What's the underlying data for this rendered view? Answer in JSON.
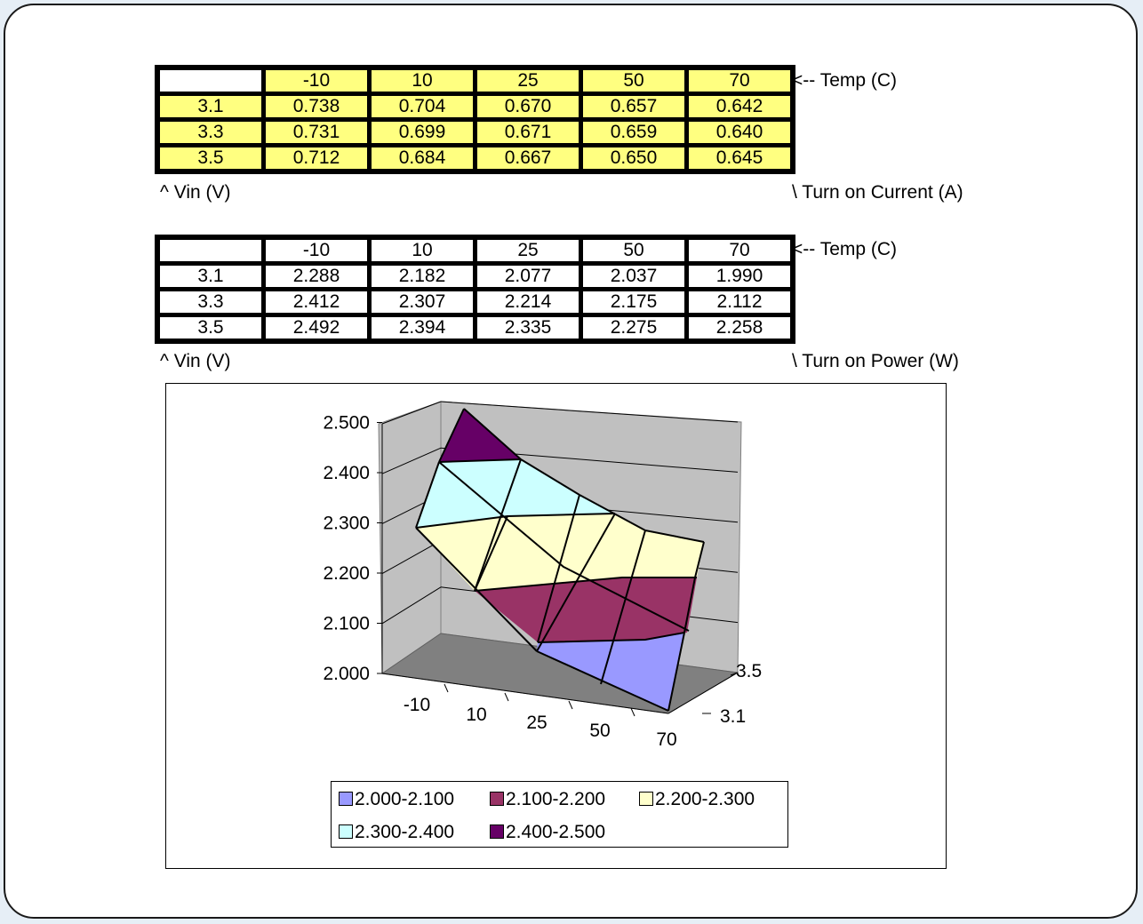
{
  "current_table": {
    "temps": [
      "-10",
      "10",
      "25",
      "50",
      "70"
    ],
    "rows": [
      {
        "vin": "3.1",
        "values": [
          "0.738",
          "0.704",
          "0.670",
          "0.657",
          "0.642"
        ]
      },
      {
        "vin": "3.3",
        "values": [
          "0.731",
          "0.699",
          "0.671",
          "0.659",
          "0.640"
        ]
      },
      {
        "vin": "3.5",
        "values": [
          "0.712",
          "0.684",
          "0.667",
          "0.650",
          "0.645"
        ]
      }
    ],
    "temp_label": "<-- Temp (C)",
    "vin_label": "^ Vin (V)",
    "quantity_label": "\\ Turn on Current (A)"
  },
  "power_table": {
    "temps": [
      "-10",
      "10",
      "25",
      "50",
      "70"
    ],
    "rows": [
      {
        "vin": "3.1",
        "values": [
          "2.288",
          "2.182",
          "2.077",
          "2.037",
          "1.990"
        ]
      },
      {
        "vin": "3.3",
        "values": [
          "2.412",
          "2.307",
          "2.214",
          "2.175",
          "2.112"
        ]
      },
      {
        "vin": "3.5",
        "values": [
          "2.492",
          "2.394",
          "2.335",
          "2.275",
          "2.258"
        ]
      }
    ],
    "temp_label": "<-- Temp (C)",
    "vin_label": "^ Vin (V)",
    "quantity_label": "\\ Turn on Power (W)"
  },
  "chart_data": {
    "type": "surface",
    "x": [
      "-10",
      "10",
      "25",
      "50",
      "70"
    ],
    "series": [
      {
        "name": "3.1",
        "values": [
          2.288,
          2.182,
          2.077,
          2.037,
          1.99
        ]
      },
      {
        "name": "3.5",
        "values": [
          2.492,
          2.394,
          2.335,
          2.275,
          2.258
        ]
      }
    ],
    "z_ticks": [
      "2.000",
      "2.100",
      "2.200",
      "2.300",
      "2.400",
      "2.500"
    ],
    "zlim": [
      2.0,
      2.5
    ],
    "legend": [
      {
        "label": "2.000-2.100",
        "color": "#9999ff"
      },
      {
        "label": "2.100-2.200",
        "color": "#993366"
      },
      {
        "label": "2.200-2.300",
        "color": "#ffffcc"
      },
      {
        "label": "2.300-2.400",
        "color": "#ccffff"
      },
      {
        "label": "2.400-2.500",
        "color": "#660066"
      }
    ],
    "legend_position": "bottom",
    "grid": true
  }
}
